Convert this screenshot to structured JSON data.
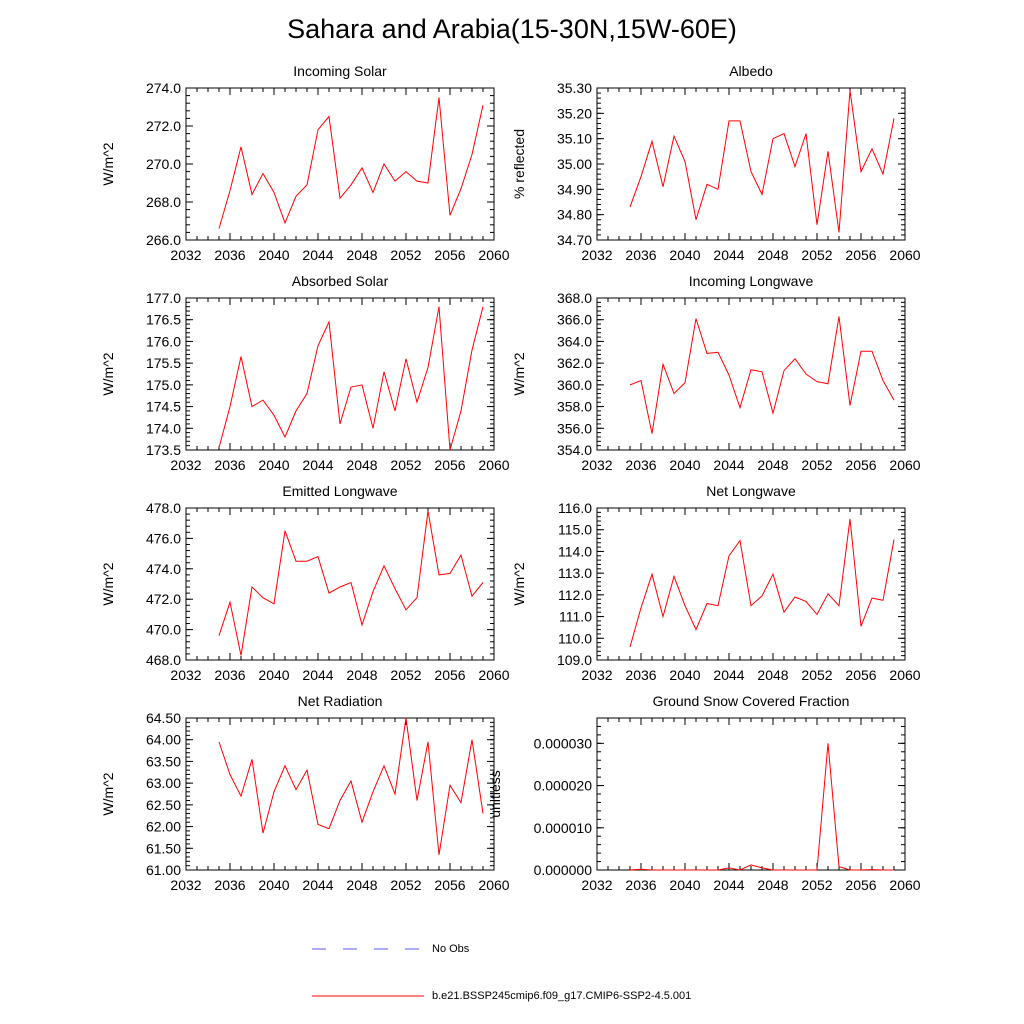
{
  "page_title": "Sahara and Arabia(15-30N,15W-60E)",
  "legend": {
    "obs_label": "No Obs",
    "obs_color": "#5a5aff",
    "model_label": "b.e21.BSSP245cmip6.f09_g17.CMIP6-SSP2-4.5.001",
    "model_color": "#ff0000"
  },
  "chart_data": [
    {
      "type": "line",
      "title": "Incoming Solar",
      "ylabel": "W/m^2",
      "xlim": [
        2032,
        2060
      ],
      "x_ticks": [
        "2032",
        "2036",
        "2040",
        "2044",
        "2048",
        "2052",
        "2056",
        "2060"
      ],
      "ylim": [
        266.0,
        274.0
      ],
      "y_ticks": [
        "266.0",
        "268.0",
        "270.0",
        "272.0",
        "274.0"
      ],
      "x": [
        2035,
        2036,
        2037,
        2038,
        2039,
        2040,
        2041,
        2042,
        2043,
        2044,
        2045,
        2046,
        2047,
        2048,
        2049,
        2050,
        2051,
        2052,
        2053,
        2054,
        2055,
        2056,
        2057,
        2058,
        2059
      ],
      "series": [
        {
          "values": [
            266.6,
            268.6,
            270.9,
            268.4,
            269.5,
            268.5,
            266.9,
            268.3,
            268.9,
            271.8,
            272.5,
            268.2,
            268.9,
            269.8,
            268.5,
            270.0,
            269.1,
            269.6,
            269.1,
            269.0,
            273.5,
            267.3,
            268.7,
            270.5,
            273.1
          ]
        }
      ]
    },
    {
      "type": "line",
      "title": "Albedo",
      "ylabel": "% reflected",
      "xlim": [
        2032,
        2060
      ],
      "x_ticks": [
        "2032",
        "2036",
        "2040",
        "2044",
        "2048",
        "2052",
        "2056",
        "2060"
      ],
      "ylim": [
        34.7,
        35.3
      ],
      "y_ticks": [
        "34.70",
        "34.80",
        "34.90",
        "35.00",
        "35.10",
        "35.20",
        "35.30"
      ],
      "x": [
        2035,
        2036,
        2037,
        2038,
        2039,
        2040,
        2041,
        2042,
        2043,
        2044,
        2045,
        2046,
        2047,
        2048,
        2049,
        2050,
        2051,
        2052,
        2053,
        2054,
        2055,
        2056,
        2057,
        2058,
        2059
      ],
      "series": [
        {
          "values": [
            34.83,
            34.95,
            35.09,
            34.91,
            35.11,
            35.01,
            34.78,
            34.92,
            34.9,
            35.17,
            35.17,
            34.97,
            34.88,
            35.1,
            35.12,
            34.99,
            35.12,
            34.76,
            35.05,
            34.73,
            35.29,
            34.97,
            35.06,
            34.96,
            35.18
          ]
        }
      ]
    },
    {
      "type": "line",
      "title": "Absorbed Solar",
      "ylabel": "W/m^2",
      "xlim": [
        2032,
        2060
      ],
      "x_ticks": [
        "2032",
        "2036",
        "2040",
        "2044",
        "2048",
        "2052",
        "2056",
        "2060"
      ],
      "ylim": [
        173.5,
        177.0
      ],
      "y_ticks": [
        "173.5",
        "174.0",
        "174.5",
        "175.0",
        "175.5",
        "176.0",
        "176.5",
        "177.0"
      ],
      "x": [
        2035,
        2036,
        2037,
        2038,
        2039,
        2040,
        2041,
        2042,
        2043,
        2044,
        2045,
        2046,
        2047,
        2048,
        2049,
        2050,
        2051,
        2052,
        2053,
        2054,
        2055,
        2056,
        2057,
        2058,
        2059
      ],
      "series": [
        {
          "values": [
            173.55,
            174.5,
            175.65,
            174.5,
            174.65,
            174.3,
            173.8,
            174.4,
            174.8,
            175.9,
            176.45,
            174.1,
            174.95,
            175.0,
            174.0,
            175.3,
            174.4,
            175.6,
            174.6,
            175.4,
            176.8,
            173.5,
            174.4,
            175.8,
            176.8
          ]
        }
      ]
    },
    {
      "type": "line",
      "title": "Incoming Longwave",
      "ylabel": "W/m^2",
      "xlim": [
        2032,
        2060
      ],
      "x_ticks": [
        "2032",
        "2036",
        "2040",
        "2044",
        "2048",
        "2052",
        "2056",
        "2060"
      ],
      "ylim": [
        354.0,
        368.0
      ],
      "y_ticks": [
        "354.0",
        "356.0",
        "358.0",
        "360.0",
        "362.0",
        "364.0",
        "366.0",
        "368.0"
      ],
      "x": [
        2035,
        2036,
        2037,
        2038,
        2039,
        2040,
        2041,
        2042,
        2043,
        2044,
        2045,
        2046,
        2047,
        2048,
        2049,
        2050,
        2051,
        2052,
        2053,
        2054,
        2055,
        2056,
        2057,
        2058,
        2059
      ],
      "series": [
        {
          "values": [
            360.0,
            360.4,
            355.5,
            361.9,
            359.2,
            360.2,
            366.1,
            362.9,
            363.0,
            360.9,
            357.9,
            361.4,
            361.2,
            357.4,
            361.3,
            362.4,
            361.0,
            360.3,
            360.1,
            366.3,
            358.1,
            363.1,
            363.1,
            360.4,
            358.6
          ]
        }
      ]
    },
    {
      "type": "line",
      "title": "Emitted Longwave",
      "ylabel": "W/m^2",
      "xlim": [
        2032,
        2060
      ],
      "x_ticks": [
        "2032",
        "2036",
        "2040",
        "2044",
        "2048",
        "2052",
        "2056",
        "2060"
      ],
      "ylim": [
        468.0,
        478.0
      ],
      "y_ticks": [
        "468.0",
        "470.0",
        "472.0",
        "474.0",
        "476.0",
        "478.0"
      ],
      "x": [
        2035,
        2036,
        2037,
        2038,
        2039,
        2040,
        2041,
        2042,
        2043,
        2044,
        2045,
        2046,
        2047,
        2048,
        2049,
        2050,
        2051,
        2052,
        2053,
        2054,
        2055,
        2056,
        2057,
        2058,
        2059
      ],
      "series": [
        {
          "values": [
            469.6,
            471.8,
            468.3,
            472.8,
            472.1,
            471.7,
            476.5,
            474.5,
            474.5,
            474.8,
            472.4,
            472.8,
            473.1,
            470.3,
            472.5,
            474.2,
            472.7,
            471.3,
            472.1,
            477.8,
            473.6,
            473.7,
            474.9,
            472.2,
            473.1
          ]
        }
      ]
    },
    {
      "type": "line",
      "title": "Net Longwave",
      "ylabel": "W/m^2",
      "xlim": [
        2032,
        2060
      ],
      "x_ticks": [
        "2032",
        "2036",
        "2040",
        "2044",
        "2048",
        "2052",
        "2056",
        "2060"
      ],
      "ylim": [
        109.0,
        116.0
      ],
      "y_ticks": [
        "109.0",
        "110.0",
        "111.0",
        "112.0",
        "113.0",
        "114.0",
        "115.0",
        "116.0"
      ],
      "x": [
        2035,
        2036,
        2037,
        2038,
        2039,
        2040,
        2041,
        2042,
        2043,
        2044,
        2045,
        2046,
        2047,
        2048,
        2049,
        2050,
        2051,
        2052,
        2053,
        2054,
        2055,
        2056,
        2057,
        2058,
        2059
      ],
      "series": [
        {
          "values": [
            109.6,
            111.4,
            112.95,
            111.0,
            112.85,
            111.5,
            110.4,
            111.6,
            111.5,
            113.8,
            114.5,
            111.5,
            111.95,
            112.95,
            111.2,
            111.9,
            111.7,
            111.1,
            112.05,
            111.5,
            115.5,
            110.55,
            111.85,
            111.75,
            114.55
          ]
        }
      ]
    },
    {
      "type": "line",
      "title": "Net Radiation",
      "ylabel": "W/m^2",
      "xlim": [
        2032,
        2060
      ],
      "x_ticks": [
        "2032",
        "2036",
        "2040",
        "2044",
        "2048",
        "2052",
        "2056",
        "2060"
      ],
      "ylim": [
        61.0,
        64.5
      ],
      "y_ticks": [
        "61.00",
        "61.50",
        "62.00",
        "62.50",
        "63.00",
        "63.50",
        "64.00",
        "64.50"
      ],
      "x": [
        2035,
        2036,
        2037,
        2038,
        2039,
        2040,
        2041,
        2042,
        2043,
        2044,
        2045,
        2046,
        2047,
        2048,
        2049,
        2050,
        2051,
        2052,
        2053,
        2054,
        2055,
        2056,
        2057,
        2058,
        2059
      ],
      "series": [
        {
          "values": [
            63.95,
            63.2,
            62.7,
            63.55,
            61.85,
            62.8,
            63.4,
            62.85,
            63.3,
            62.05,
            61.95,
            62.6,
            63.05,
            62.1,
            62.8,
            63.4,
            62.75,
            64.5,
            62.6,
            63.95,
            61.35,
            62.95,
            62.55,
            64.0,
            62.3
          ]
        }
      ]
    },
    {
      "type": "line",
      "title": "Ground Snow Covered Fraction",
      "ylabel": "unitless",
      "xlim": [
        2032,
        2060
      ],
      "x_ticks": [
        "2032",
        "2036",
        "2040",
        "2044",
        "2048",
        "2052",
        "2056",
        "2060"
      ],
      "ylim": [
        0.0,
        3.6e-05
      ],
      "y_ticks": [
        "0.000000",
        "0.000010",
        "0.000020",
        "0.000030"
      ],
      "y_tick_values": [
        0.0,
        1e-05,
        2e-05,
        3e-05
      ],
      "x": [
        2035,
        2036,
        2037,
        2038,
        2039,
        2040,
        2041,
        2042,
        2043,
        2044,
        2045,
        2046,
        2047,
        2048,
        2049,
        2050,
        2051,
        2052,
        2053,
        2054,
        2055,
        2056,
        2057,
        2058,
        2059
      ],
      "series": [
        {
          "values": [
            0.0,
            2e-07,
            0.0,
            0.0,
            0.0,
            0.0,
            0.0,
            0.0,
            0.0,
            5e-07,
            0.0,
            1.2e-06,
            5e-07,
            0.0,
            0.0,
            0.0,
            0.0,
            0.0,
            3e-05,
            8e-07,
            0.0,
            0.0,
            1e-07,
            0.0,
            0.0
          ]
        }
      ]
    }
  ]
}
